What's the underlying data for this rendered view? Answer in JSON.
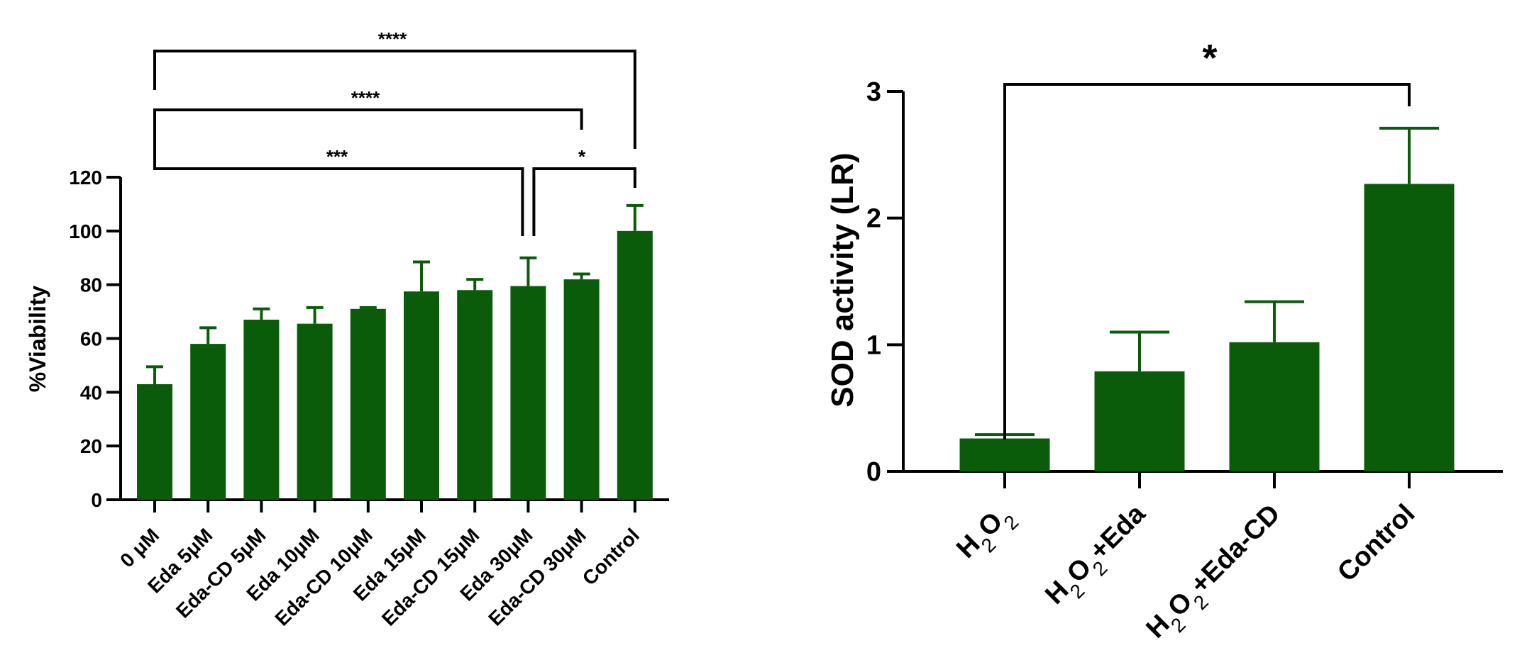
{
  "chart_data": [
    {
      "type": "bar",
      "ylabel": "%Viability",
      "xlabel": "",
      "ylim": [
        0,
        120
      ],
      "yticks": [
        0,
        20,
        40,
        60,
        80,
        100,
        120
      ],
      "bar_color": "#0a5c0a",
      "categories": [
        "0 μM",
        "Eda 5μM",
        "Eda-CD 5μM",
        "Eda 10μM",
        "Eda-CD 10μM",
        "Eda 15μM",
        "Eda-CD 15μM",
        "Eda 30μM",
        "Eda-CD 30μM",
        "Control"
      ],
      "values": [
        43,
        58,
        67,
        65.5,
        71,
        77.5,
        78,
        79.5,
        82,
        100
      ],
      "errors": [
        6.5,
        6,
        4,
        6,
        0.5,
        11,
        4,
        10.5,
        2,
        9.5
      ],
      "significance": [
        {
          "from": "0 μM",
          "to": "Eda 30μM",
          "label": "***"
        },
        {
          "from": "Eda 30μM",
          "to": "Control",
          "label": "*"
        },
        {
          "from": "0 μM",
          "to": "Eda-CD 30μM",
          "label": "****"
        },
        {
          "from": "0 μM",
          "to": "Control",
          "label": "****"
        }
      ]
    },
    {
      "type": "bar",
      "ylabel": "SOD activity (LR)",
      "xlabel": "",
      "ylim": [
        0,
        3
      ],
      "yticks": [
        0,
        1,
        2,
        3
      ],
      "bar_color": "#0a5c0a",
      "categories": [
        {
          "parts": [
            "H",
            "2",
            "O",
            "2",
            ""
          ]
        },
        {
          "parts": [
            "H",
            "2",
            "O",
            "2",
            "+Eda"
          ]
        },
        {
          "parts": [
            "H",
            "2",
            "O",
            "2",
            "+Eda-CD"
          ]
        },
        {
          "parts": [
            "",
            "",
            "",
            "",
            "Control"
          ]
        }
      ],
      "values": [
        0.26,
        0.79,
        1.02,
        2.27
      ],
      "errors": [
        0.03,
        0.31,
        0.32,
        0.44
      ],
      "significance": [
        {
          "from": 0,
          "to": 3,
          "label": "*"
        }
      ]
    }
  ]
}
